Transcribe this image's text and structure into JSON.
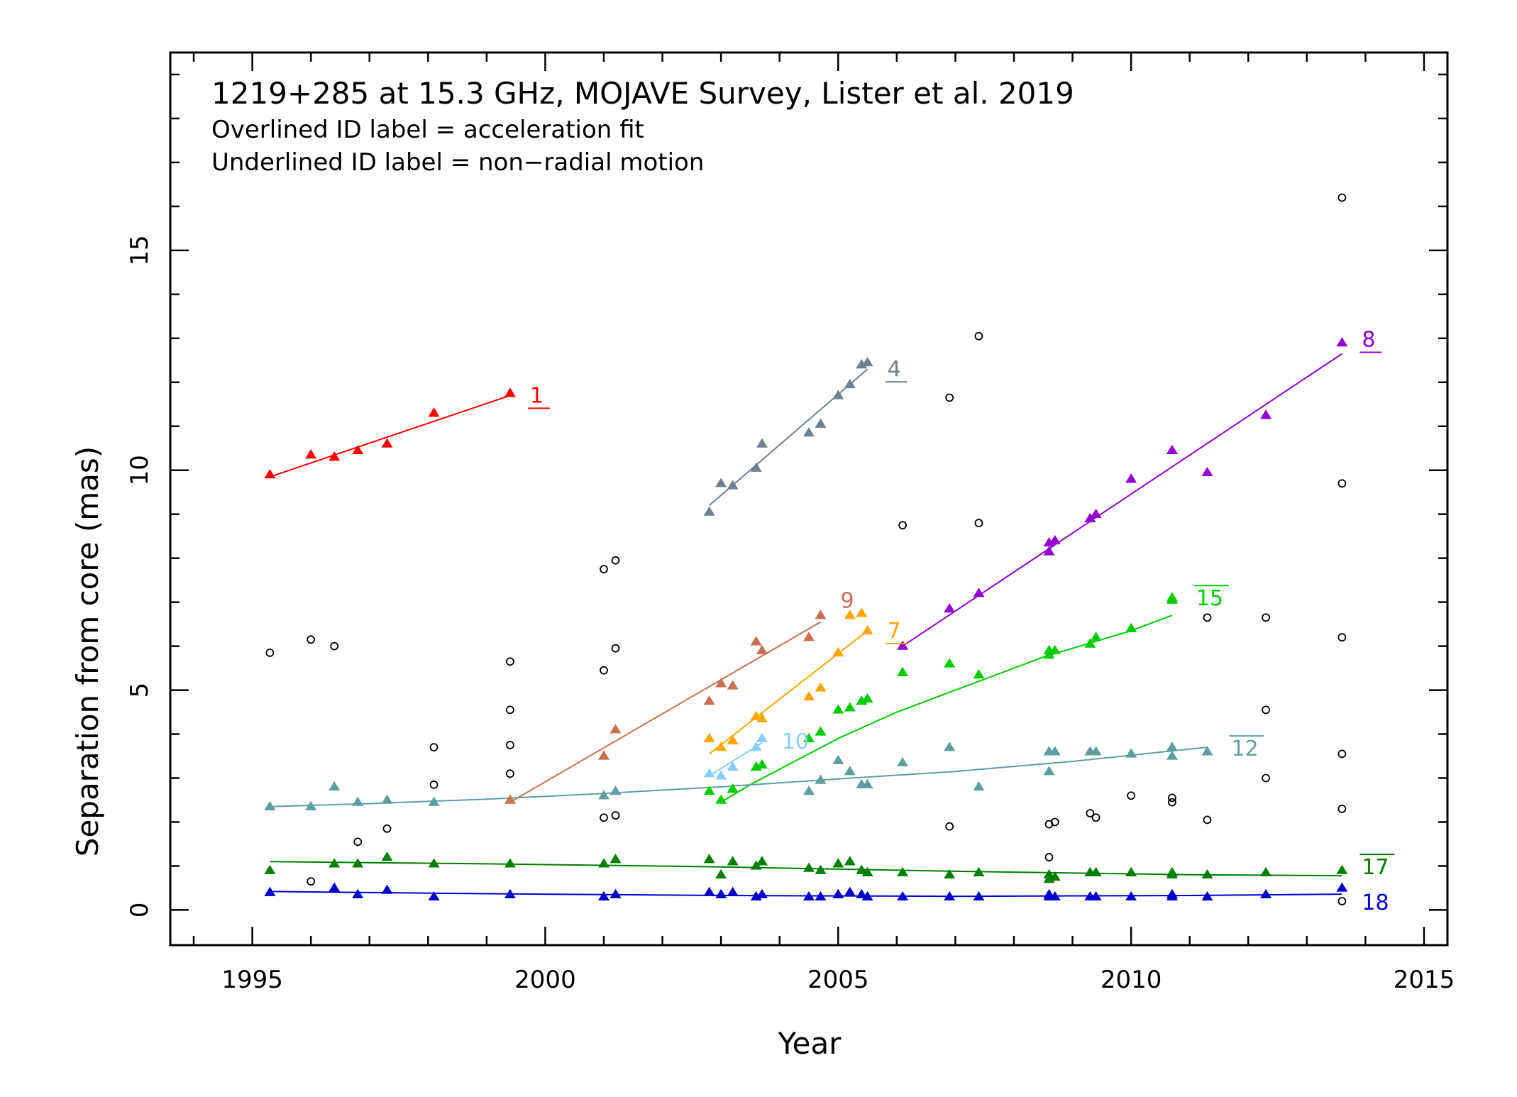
{
  "chart_data": {
    "type": "scatter",
    "title": "1219+285 at 15.3 GHz, MOJAVE Survey, Lister et al. 2019",
    "notes": [
      "Overlined ID label = acceleration fit",
      "Underlined ID label = non−radial motion"
    ],
    "xlabel": "Year",
    "ylabel": "Separation from core (mas)",
    "xlim": [
      1993.6,
      2015.4
    ],
    "ylim": [
      -0.8,
      19.5
    ],
    "xticks": [
      1995,
      2000,
      2005,
      2010,
      2015
    ],
    "yticks": [
      0,
      5,
      10,
      15
    ],
    "series": [
      {
        "name": "1",
        "color": "#ff0000",
        "label_style": "underline",
        "points": [
          [
            1995.3,
            9.9
          ],
          [
            1996.0,
            10.35
          ],
          [
            1996.4,
            10.3
          ],
          [
            1996.8,
            10.45
          ],
          [
            1997.3,
            10.6
          ],
          [
            1998.1,
            11.3
          ],
          [
            1999.4,
            11.75
          ]
        ],
        "fit": [
          [
            1995.3,
            9.85
          ],
          [
            1999.4,
            11.7
          ]
        ]
      },
      {
        "name": "4",
        "color": "#708090",
        "label_style": "underline",
        "points": [
          [
            2002.8,
            9.05
          ],
          [
            2003.0,
            9.7
          ],
          [
            2003.2,
            9.65
          ],
          [
            2003.6,
            10.05
          ],
          [
            2003.7,
            10.6
          ],
          [
            2004.5,
            10.85
          ],
          [
            2004.7,
            11.05
          ],
          [
            2005.0,
            11.7
          ],
          [
            2005.2,
            11.95
          ],
          [
            2005.4,
            12.4
          ],
          [
            2005.5,
            12.45
          ]
        ],
        "fit": [
          [
            2002.8,
            9.2
          ],
          [
            2005.5,
            12.3
          ]
        ]
      },
      {
        "name": "8",
        "color": "#9400d3",
        "label_style": "underline",
        "points": [
          [
            2006.1,
            6.0
          ],
          [
            2006.9,
            6.85
          ],
          [
            2007.4,
            7.2
          ],
          [
            2008.6,
            8.15
          ],
          [
            2008.6,
            8.35
          ],
          [
            2008.7,
            8.4
          ],
          [
            2009.3,
            8.9
          ],
          [
            2009.4,
            9.0
          ],
          [
            2010.0,
            9.8
          ],
          [
            2010.7,
            10.45
          ],
          [
            2010.7,
            10.45
          ],
          [
            2011.3,
            9.95
          ],
          [
            2012.3,
            11.25
          ],
          [
            2013.6,
            12.9
          ]
        ],
        "fit": [
          [
            2006.1,
            6.0
          ],
          [
            2013.6,
            12.65
          ]
        ]
      },
      {
        "name": "9",
        "color": "#c87050",
        "label_style": "none",
        "points": [
          [
            1999.4,
            2.5
          ],
          [
            2001.0,
            3.5
          ],
          [
            2001.2,
            4.1
          ],
          [
            2002.8,
            4.75
          ],
          [
            2003.0,
            5.15
          ],
          [
            2003.2,
            5.1
          ],
          [
            2003.6,
            6.1
          ],
          [
            2003.7,
            5.9
          ],
          [
            2004.5,
            6.2
          ],
          [
            2004.7,
            6.7
          ]
        ],
        "fit": [
          [
            1999.4,
            2.45
          ],
          [
            2004.7,
            6.55
          ]
        ]
      },
      {
        "name": "7",
        "color": "#ffa500",
        "label_style": "underline",
        "points": [
          [
            2002.8,
            3.9
          ],
          [
            2003.0,
            3.7
          ],
          [
            2003.2,
            3.85
          ],
          [
            2003.6,
            4.4
          ],
          [
            2003.7,
            4.35
          ],
          [
            2004.5,
            4.85
          ],
          [
            2004.7,
            5.05
          ],
          [
            2005.0,
            5.85
          ],
          [
            2005.2,
            6.7
          ],
          [
            2005.4,
            6.75
          ],
          [
            2005.5,
            6.35
          ]
        ],
        "fit": [
          [
            2002.8,
            3.55
          ],
          [
            2005.5,
            6.35
          ]
        ]
      },
      {
        "name": "10",
        "color": "#87cefa",
        "label_style": "none",
        "points": [
          [
            2002.8,
            3.1
          ],
          [
            2003.0,
            3.05
          ],
          [
            2003.2,
            3.25
          ],
          [
            2003.6,
            3.7
          ],
          [
            2003.7,
            3.9
          ]
        ],
        "fit": [
          [
            2002.8,
            3.05
          ],
          [
            2003.7,
            3.8
          ]
        ]
      },
      {
        "name": "15",
        "color": "#00cd00",
        "label_style": "overline",
        "points": [
          [
            2002.8,
            2.7
          ],
          [
            2003.0,
            2.5
          ],
          [
            2003.2,
            2.75
          ],
          [
            2003.6,
            3.25
          ],
          [
            2003.7,
            3.3
          ],
          [
            2004.5,
            3.9
          ],
          [
            2004.7,
            4.05
          ],
          [
            2005.0,
            4.55
          ],
          [
            2005.2,
            4.6
          ],
          [
            2005.4,
            4.75
          ],
          [
            2005.5,
            4.8
          ],
          [
            2006.1,
            5.4
          ],
          [
            2006.9,
            5.6
          ],
          [
            2007.4,
            5.35
          ],
          [
            2008.6,
            5.8
          ],
          [
            2008.6,
            5.9
          ],
          [
            2008.7,
            5.9
          ],
          [
            2009.3,
            6.05
          ],
          [
            2009.4,
            6.2
          ],
          [
            2010.0,
            6.4
          ],
          [
            2010.7,
            7.1
          ],
          [
            2010.7,
            7.05
          ]
        ],
        "fit": [
          [
            2003.0,
            2.45
          ],
          [
            2003.5,
            2.85
          ],
          [
            2004.0,
            3.2
          ],
          [
            2004.5,
            3.55
          ],
          [
            2005.0,
            3.9
          ],
          [
            2005.5,
            4.2
          ],
          [
            2006.0,
            4.5
          ],
          [
            2006.5,
            4.75
          ],
          [
            2007.0,
            5.0
          ],
          [
            2007.5,
            5.25
          ],
          [
            2008.0,
            5.5
          ],
          [
            2008.5,
            5.75
          ],
          [
            2009.0,
            5.95
          ],
          [
            2009.5,
            6.15
          ],
          [
            2010.0,
            6.35
          ],
          [
            2010.7,
            6.7
          ]
        ]
      },
      {
        "name": "12",
        "color": "#5f9ea0",
        "label_style": "overline",
        "points": [
          [
            1995.3,
            2.35
          ],
          [
            1996.0,
            2.35
          ],
          [
            1996.4,
            2.8
          ],
          [
            1996.8,
            2.45
          ],
          [
            1997.3,
            2.5
          ],
          [
            1998.1,
            2.45
          ],
          [
            2001.0,
            2.6
          ],
          [
            2001.2,
            2.7
          ],
          [
            2004.5,
            2.7
          ],
          [
            2004.7,
            2.95
          ],
          [
            2005.0,
            3.4
          ],
          [
            2005.2,
            3.15
          ],
          [
            2005.4,
            2.85
          ],
          [
            2005.5,
            2.85
          ],
          [
            2006.1,
            3.35
          ],
          [
            2006.9,
            3.7
          ],
          [
            2007.4,
            2.8
          ],
          [
            2008.6,
            3.15
          ],
          [
            2008.6,
            3.6
          ],
          [
            2008.7,
            3.6
          ],
          [
            2009.3,
            3.6
          ],
          [
            2009.4,
            3.6
          ],
          [
            2010.0,
            3.55
          ],
          [
            2010.7,
            3.7
          ],
          [
            2010.7,
            3.5
          ],
          [
            2011.3,
            3.6
          ]
        ],
        "fit": [
          [
            1995.3,
            2.35
          ],
          [
            1997.0,
            2.42
          ],
          [
            1999.0,
            2.52
          ],
          [
            2001.0,
            2.65
          ],
          [
            2003.0,
            2.8
          ],
          [
            2005.0,
            2.98
          ],
          [
            2007.0,
            3.15
          ],
          [
            2009.0,
            3.38
          ],
          [
            2011.3,
            3.7
          ]
        ]
      },
      {
        "name": "17",
        "color": "#008000",
        "label_style": "overline",
        "points": [
          [
            1995.3,
            0.9
          ],
          [
            1996.4,
            1.05
          ],
          [
            1996.8,
            1.05
          ],
          [
            1997.3,
            1.2
          ],
          [
            1998.1,
            1.05
          ],
          [
            1999.4,
            1.05
          ],
          [
            2001.0,
            1.05
          ],
          [
            2001.2,
            1.15
          ],
          [
            2002.8,
            1.15
          ],
          [
            2003.0,
            0.8
          ],
          [
            2003.2,
            1.1
          ],
          [
            2003.6,
            1.0
          ],
          [
            2003.7,
            1.1
          ],
          [
            2004.5,
            0.95
          ],
          [
            2004.7,
            0.9
          ],
          [
            2005.0,
            1.05
          ],
          [
            2005.2,
            1.1
          ],
          [
            2005.4,
            0.9
          ],
          [
            2005.5,
            0.85
          ],
          [
            2006.1,
            0.85
          ],
          [
            2006.9,
            0.8
          ],
          [
            2007.4,
            0.85
          ],
          [
            2008.6,
            0.7
          ],
          [
            2008.6,
            0.8
          ],
          [
            2008.7,
            0.75
          ],
          [
            2009.3,
            0.85
          ],
          [
            2009.4,
            0.85
          ],
          [
            2010.0,
            0.85
          ],
          [
            2010.7,
            0.85
          ],
          [
            2010.7,
            0.8
          ],
          [
            2011.3,
            0.8
          ],
          [
            2012.3,
            0.85
          ],
          [
            2013.6,
            0.9
          ]
        ],
        "fit": [
          [
            1995.3,
            1.1
          ],
          [
            1999.0,
            1.05
          ],
          [
            2003.0,
            0.98
          ],
          [
            2007.0,
            0.88
          ],
          [
            2011.0,
            0.8
          ],
          [
            2013.6,
            0.78
          ]
        ]
      },
      {
        "name": "18",
        "color": "#0000cd",
        "label_style": "none",
        "points": [
          [
            1995.3,
            0.4
          ],
          [
            1996.4,
            0.5
          ],
          [
            1996.8,
            0.35
          ],
          [
            1997.3,
            0.45
          ],
          [
            1998.1,
            0.3
          ],
          [
            1999.4,
            0.35
          ],
          [
            2001.0,
            0.3
          ],
          [
            2001.2,
            0.35
          ],
          [
            2002.8,
            0.4
          ],
          [
            2003.0,
            0.35
          ],
          [
            2003.2,
            0.4
          ],
          [
            2003.6,
            0.3
          ],
          [
            2003.7,
            0.35
          ],
          [
            2004.5,
            0.3
          ],
          [
            2004.7,
            0.3
          ],
          [
            2005.0,
            0.35
          ],
          [
            2005.2,
            0.4
          ],
          [
            2005.4,
            0.35
          ],
          [
            2005.5,
            0.3
          ],
          [
            2006.1,
            0.3
          ],
          [
            2006.9,
            0.3
          ],
          [
            2007.4,
            0.3
          ],
          [
            2008.6,
            0.3
          ],
          [
            2008.6,
            0.35
          ],
          [
            2008.7,
            0.3
          ],
          [
            2009.3,
            0.3
          ],
          [
            2009.4,
            0.3
          ],
          [
            2010.0,
            0.3
          ],
          [
            2010.7,
            0.3
          ],
          [
            2010.7,
            0.35
          ],
          [
            2011.3,
            0.3
          ],
          [
            2012.3,
            0.35
          ],
          [
            2013.6,
            0.5
          ]
        ],
        "fit": [
          [
            1995.3,
            0.42
          ],
          [
            1999.0,
            0.37
          ],
          [
            2003.0,
            0.33
          ],
          [
            2007.0,
            0.31
          ],
          [
            2011.0,
            0.33
          ],
          [
            2013.6,
            0.36
          ]
        ]
      }
    ],
    "unassigned_points": {
      "color": "#000000",
      "marker": "open-circle",
      "points": [
        [
          1995.3,
          5.85
        ],
        [
          1996.0,
          6.15
        ],
        [
          1996.0,
          0.65
        ],
        [
          1996.4,
          6.0
        ],
        [
          1996.8,
          1.55
        ],
        [
          1997.3,
          1.85
        ],
        [
          1998.1,
          3.7
        ],
        [
          1998.1,
          2.85
        ],
        [
          1999.4,
          5.65
        ],
        [
          1999.4,
          4.55
        ],
        [
          1999.4,
          3.75
        ],
        [
          1999.4,
          3.1
        ],
        [
          2001.0,
          7.75
        ],
        [
          2001.0,
          5.45
        ],
        [
          2001.0,
          2.1
        ],
        [
          2001.2,
          7.95
        ],
        [
          2001.2,
          5.95
        ],
        [
          2001.2,
          2.15
        ],
        [
          2006.1,
          8.75
        ],
        [
          2006.9,
          11.65
        ],
        [
          2006.9,
          1.9
        ],
        [
          2007.4,
          13.05
        ],
        [
          2007.4,
          8.8
        ],
        [
          2008.6,
          1.95
        ],
        [
          2008.6,
          1.2
        ],
        [
          2008.7,
          2.0
        ],
        [
          2009.3,
          2.2
        ],
        [
          2009.4,
          2.1
        ],
        [
          2010.0,
          2.6
        ],
        [
          2010.7,
          2.45
        ],
        [
          2010.7,
          2.55
        ],
        [
          2011.3,
          6.65
        ],
        [
          2011.3,
          2.05
        ],
        [
          2012.3,
          6.65
        ],
        [
          2012.3,
          4.55
        ],
        [
          2012.3,
          3.0
        ],
        [
          2013.6,
          16.2
        ],
        [
          2013.6,
          9.7
        ],
        [
          2013.6,
          6.2
        ],
        [
          2013.6,
          3.55
        ],
        [
          2013.6,
          2.3
        ],
        [
          2013.6,
          0.2
        ]
      ]
    }
  }
}
